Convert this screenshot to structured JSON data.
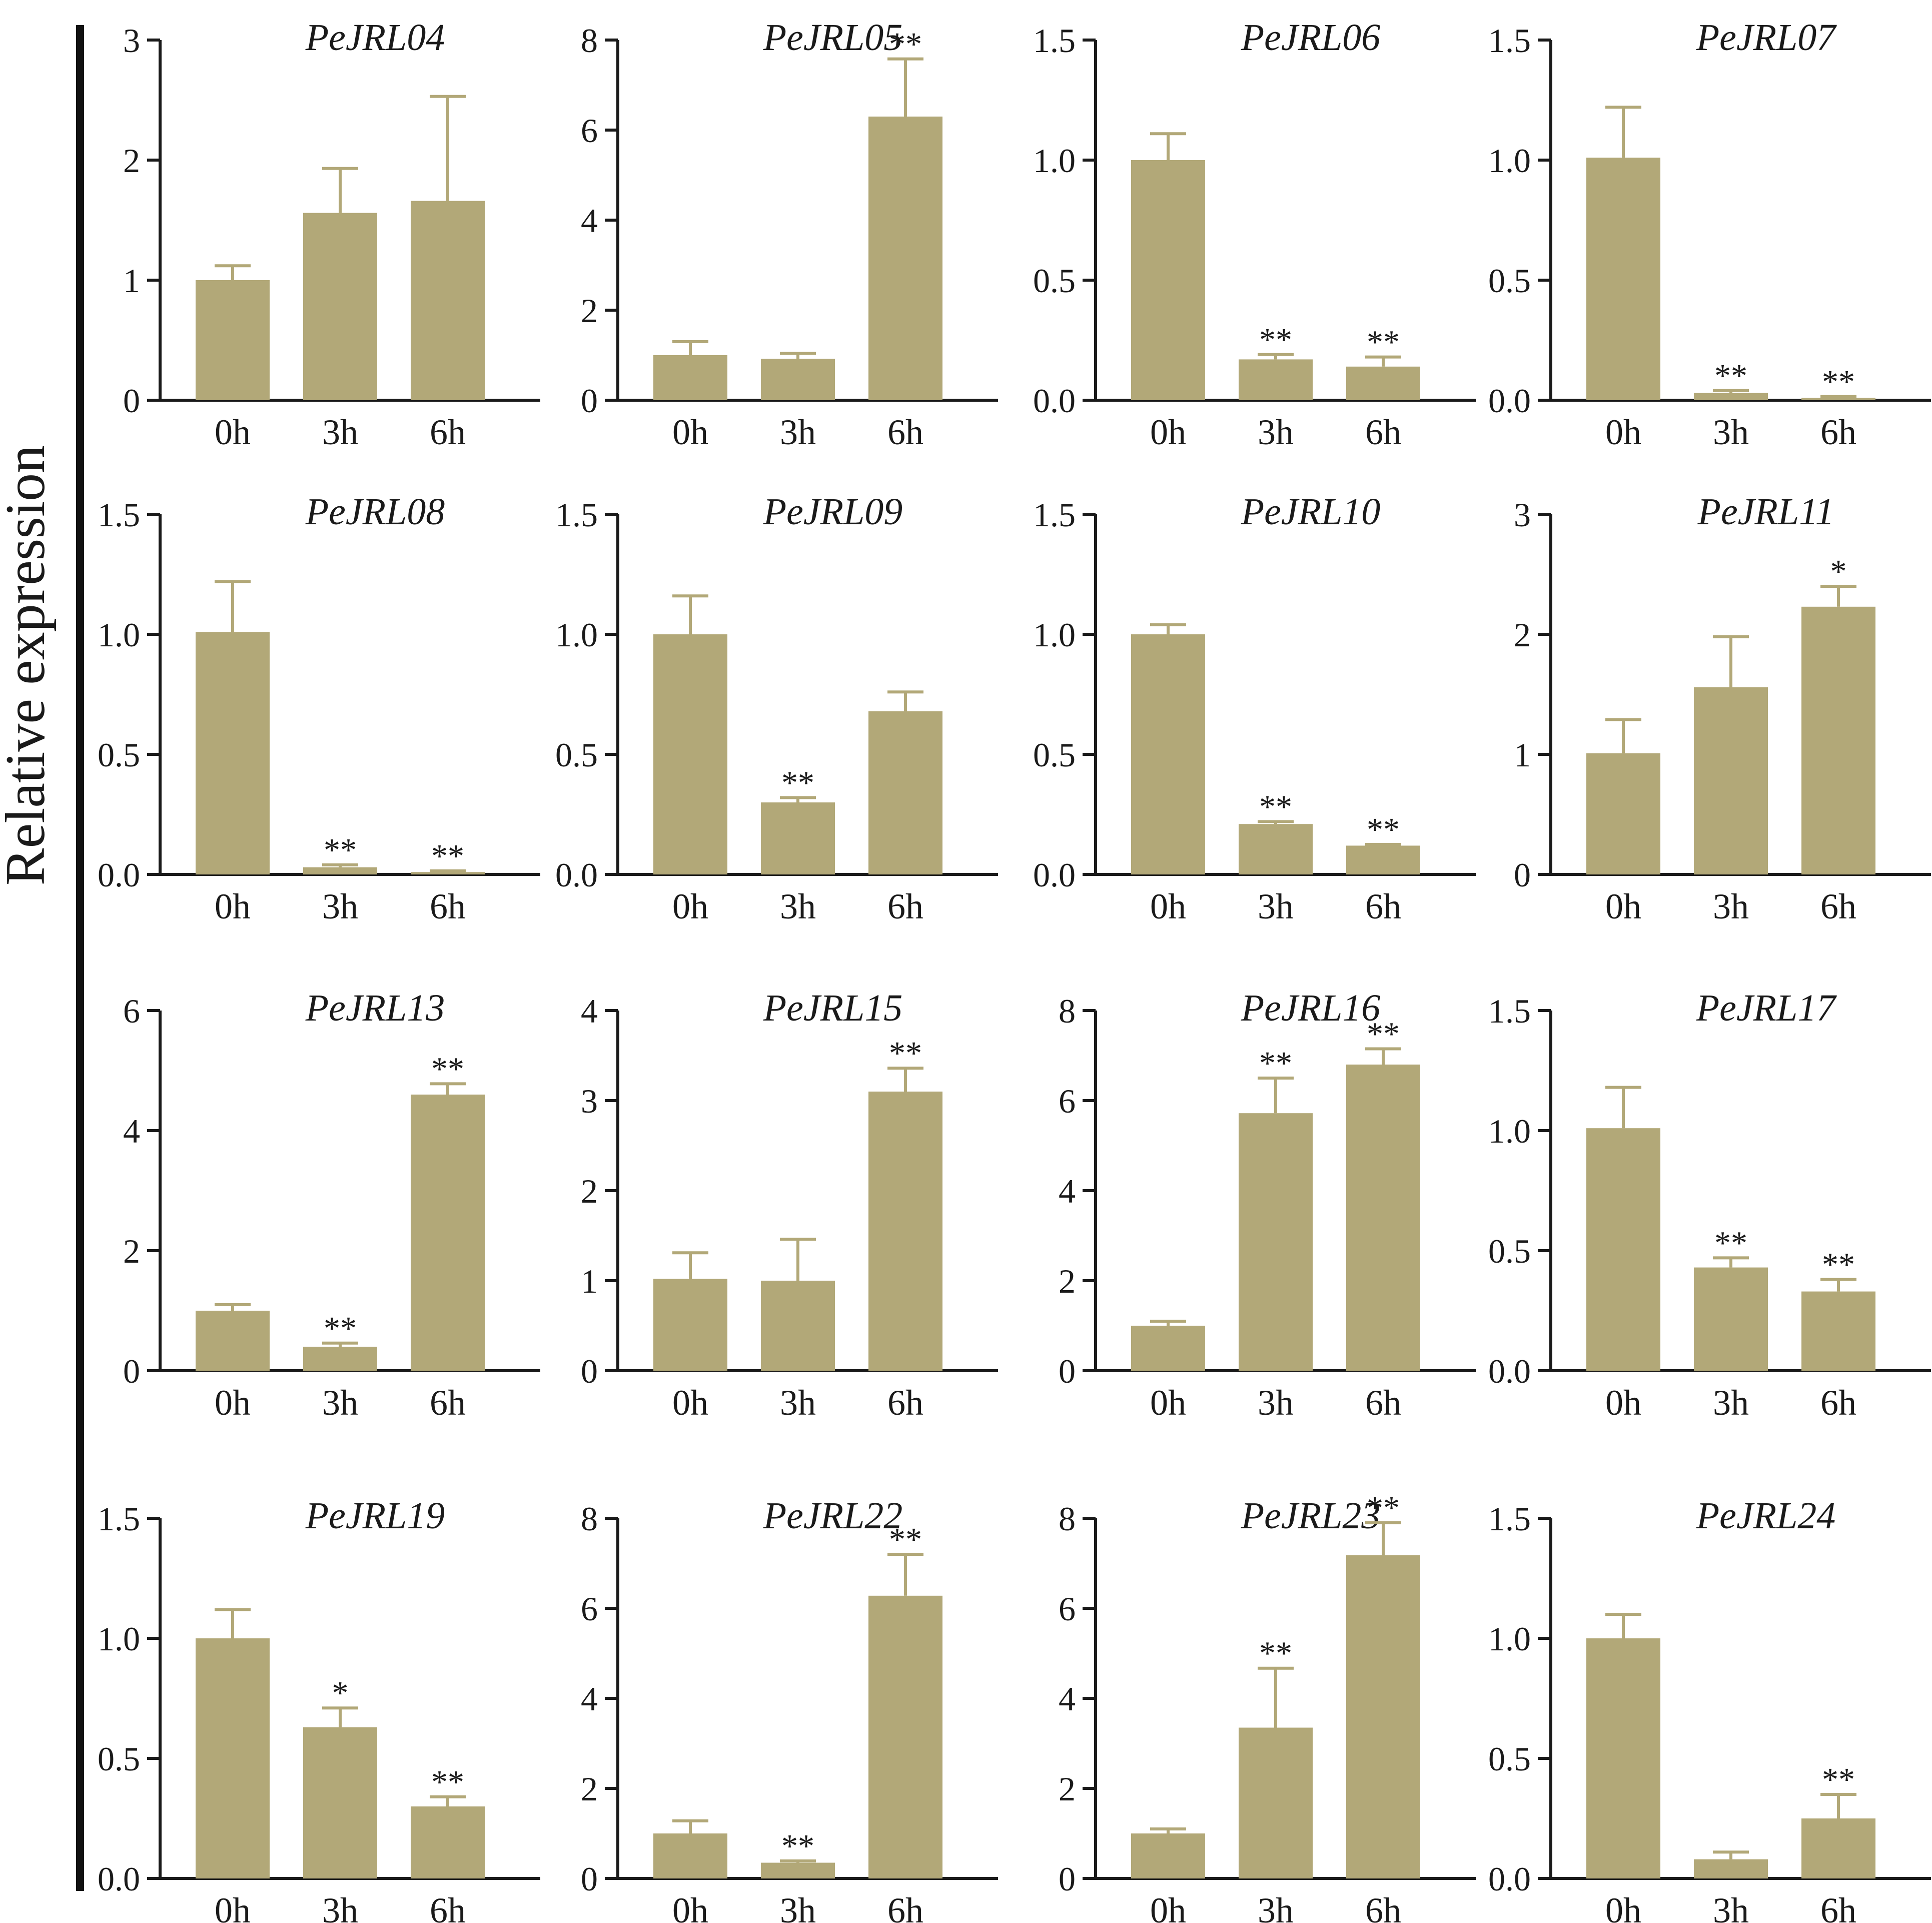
{
  "figure": {
    "ylabel": "Relative expression",
    "bar_color": "#b2a878",
    "errorbar_color": "#b2a878",
    "axis_color": "#1a1a1a",
    "significance_legend": [
      "*",
      "**"
    ]
  },
  "chart_data": [
    {
      "type": "bar",
      "title": "PeJRL04",
      "categories": [
        "0h",
        "3h",
        "6h"
      ],
      "values": [
        1.0,
        1.56,
        1.66
      ],
      "errors": [
        0.12,
        0.37,
        0.87
      ],
      "significance": [
        "",
        "",
        ""
      ],
      "ylim": [
        0,
        3
      ],
      "yticks": [
        0,
        1,
        2,
        3
      ],
      "yticklabels": [
        "0",
        "1",
        "2",
        "3"
      ]
    },
    {
      "type": "bar",
      "title": "PeJRL05",
      "categories": [
        "0h",
        "3h",
        "6h"
      ],
      "values": [
        1.0,
        0.92,
        6.3
      ],
      "errors": [
        0.3,
        0.12,
        1.28
      ],
      "significance": [
        "",
        "",
        "**"
      ],
      "ylim": [
        0,
        8
      ],
      "yticks": [
        0,
        2,
        4,
        6,
        8
      ],
      "yticklabels": [
        "0",
        "2",
        "4",
        "6",
        "8"
      ]
    },
    {
      "type": "bar",
      "title": "PeJRL06",
      "categories": [
        "0h",
        "3h",
        "6h"
      ],
      "values": [
        1.0,
        0.17,
        0.14
      ],
      "errors": [
        0.11,
        0.02,
        0.04
      ],
      "significance": [
        "",
        "**",
        "**"
      ],
      "ylim": [
        0,
        1.5
      ],
      "yticks": [
        0,
        0.5,
        1.0,
        1.5
      ],
      "yticklabels": [
        "0.0",
        "0.5",
        "1.0",
        "1.5"
      ]
    },
    {
      "type": "bar",
      "title": "PeJRL07",
      "categories": [
        "0h",
        "3h",
        "6h"
      ],
      "values": [
        1.01,
        0.03,
        0.01
      ],
      "errors": [
        0.21,
        0.01,
        0.005
      ],
      "significance": [
        "",
        "**",
        "**"
      ],
      "ylim": [
        0,
        1.5
      ],
      "yticks": [
        0,
        0.5,
        1.0,
        1.5
      ],
      "yticklabels": [
        "0.0",
        "0.5",
        "1.0",
        "1.5"
      ]
    },
    {
      "type": "bar",
      "title": "PeJRL08",
      "categories": [
        "0h",
        "3h",
        "6h"
      ],
      "values": [
        1.01,
        0.03,
        0.01
      ],
      "errors": [
        0.21,
        0.01,
        0.005
      ],
      "significance": [
        "",
        "**",
        "**"
      ],
      "ylim": [
        0,
        1.5
      ],
      "yticks": [
        0,
        0.5,
        1.0,
        1.5
      ],
      "yticklabels": [
        "0.0",
        "0.5",
        "1.0",
        "1.5"
      ]
    },
    {
      "type": "bar",
      "title": "PeJRL09",
      "categories": [
        "0h",
        "3h",
        "6h"
      ],
      "values": [
        1.0,
        0.3,
        0.68
      ],
      "errors": [
        0.16,
        0.02,
        0.08
      ],
      "significance": [
        "",
        "**",
        ""
      ],
      "ylim": [
        0,
        1.5
      ],
      "yticks": [
        0,
        0.5,
        1.0,
        1.5
      ],
      "yticklabels": [
        "0.0",
        "0.5",
        "1.0",
        "1.5"
      ]
    },
    {
      "type": "bar",
      "title": "PeJRL10",
      "categories": [
        "0h",
        "3h",
        "6h"
      ],
      "values": [
        1.0,
        0.21,
        0.12
      ],
      "errors": [
        0.04,
        0.01,
        0.005
      ],
      "significance": [
        "",
        "**",
        "**"
      ],
      "ylim": [
        0,
        1.5
      ],
      "yticks": [
        0,
        0.5,
        1.0,
        1.5
      ],
      "yticklabels": [
        "0.0",
        "0.5",
        "1.0",
        "1.5"
      ]
    },
    {
      "type": "bar",
      "title": "PeJRL11",
      "categories": [
        "0h",
        "3h",
        "6h"
      ],
      "values": [
        1.01,
        1.56,
        2.23
      ],
      "errors": [
        0.28,
        0.42,
        0.17
      ],
      "significance": [
        "",
        "",
        "*"
      ],
      "ylim": [
        0,
        3
      ],
      "yticks": [
        0,
        1,
        2,
        3
      ],
      "yticklabels": [
        "0",
        "1",
        "2",
        "3"
      ]
    },
    {
      "type": "bar",
      "title": "PeJRL13",
      "categories": [
        "0h",
        "3h",
        "6h"
      ],
      "values": [
        1.0,
        0.4,
        4.6
      ],
      "errors": [
        0.1,
        0.06,
        0.18
      ],
      "significance": [
        "",
        "**",
        "**"
      ],
      "ylim": [
        0,
        6
      ],
      "yticks": [
        0,
        2,
        4,
        6
      ],
      "yticklabels": [
        "0",
        "2",
        "4",
        "6"
      ]
    },
    {
      "type": "bar",
      "title": "PeJRL15",
      "categories": [
        "0h",
        "3h",
        "6h"
      ],
      "values": [
        1.02,
        1.0,
        3.1
      ],
      "errors": [
        0.29,
        0.46,
        0.26
      ],
      "significance": [
        "",
        "",
        "**"
      ],
      "ylim": [
        0,
        4
      ],
      "yticks": [
        0,
        1,
        2,
        3,
        4
      ],
      "yticklabels": [
        "0",
        "1",
        "2",
        "3",
        "4"
      ]
    },
    {
      "type": "bar",
      "title": "PeJRL16",
      "categories": [
        "0h",
        "3h",
        "6h"
      ],
      "values": [
        1.0,
        5.72,
        6.8
      ],
      "errors": [
        0.1,
        0.78,
        0.35
      ],
      "significance": [
        "",
        "**",
        "**"
      ],
      "ylim": [
        0,
        8
      ],
      "yticks": [
        0,
        2,
        4,
        6,
        8
      ],
      "yticklabels": [
        "0",
        "2",
        "4",
        "6",
        "8"
      ]
    },
    {
      "type": "bar",
      "title": "PeJRL17",
      "categories": [
        "0h",
        "3h",
        "6h"
      ],
      "values": [
        1.01,
        0.43,
        0.33
      ],
      "errors": [
        0.17,
        0.04,
        0.05
      ],
      "significance": [
        "",
        "**",
        "**"
      ],
      "ylim": [
        0,
        1.5
      ],
      "yticks": [
        0,
        0.5,
        1.0,
        1.5
      ],
      "yticklabels": [
        "0.0",
        "0.5",
        "1.0",
        "1.5"
      ]
    },
    {
      "type": "bar",
      "title": "PeJRL19",
      "categories": [
        "0h",
        "3h",
        "6h"
      ],
      "values": [
        1.0,
        0.63,
        0.3
      ],
      "errors": [
        0.12,
        0.08,
        0.04
      ],
      "significance": [
        "",
        "*",
        "**"
      ],
      "ylim": [
        0,
        1.5
      ],
      "yticks": [
        0,
        0.5,
        1.0,
        1.5
      ],
      "yticklabels": [
        "0.0",
        "0.5",
        "1.0",
        "1.5"
      ]
    },
    {
      "type": "bar",
      "title": "PeJRL22",
      "categories": [
        "0h",
        "3h",
        "6h"
      ],
      "values": [
        1.0,
        0.35,
        6.28
      ],
      "errors": [
        0.28,
        0.04,
        0.92
      ],
      "significance": [
        "",
        "**",
        "**"
      ],
      "ylim": [
        0,
        8
      ],
      "yticks": [
        0,
        2,
        4,
        6,
        8
      ],
      "yticklabels": [
        "0",
        "2",
        "4",
        "6",
        "8"
      ]
    },
    {
      "type": "bar",
      "title": "PeJRL23",
      "categories": [
        "0h",
        "3h",
        "6h"
      ],
      "values": [
        1.0,
        3.35,
        7.18
      ],
      "errors": [
        0.1,
        1.32,
        0.72
      ],
      "significance": [
        "",
        "**",
        "**"
      ],
      "ylim": [
        0,
        8
      ],
      "yticks": [
        0,
        2,
        4,
        6,
        8
      ],
      "yticklabels": [
        "0",
        "2",
        "4",
        "6",
        "8"
      ]
    },
    {
      "type": "bar",
      "title": "PeJRL24",
      "categories": [
        "0h",
        "3h",
        "6h"
      ],
      "values": [
        1.0,
        0.08,
        0.25
      ],
      "errors": [
        0.1,
        0.03,
        0.1
      ],
      "significance": [
        "",
        "",
        "**"
      ],
      "ylim": [
        0,
        1.5
      ],
      "yticks": [
        0,
        0.5,
        1.0,
        1.5
      ],
      "yticklabels": [
        "0.0",
        "0.5",
        "1.0",
        "1.5"
      ]
    }
  ]
}
